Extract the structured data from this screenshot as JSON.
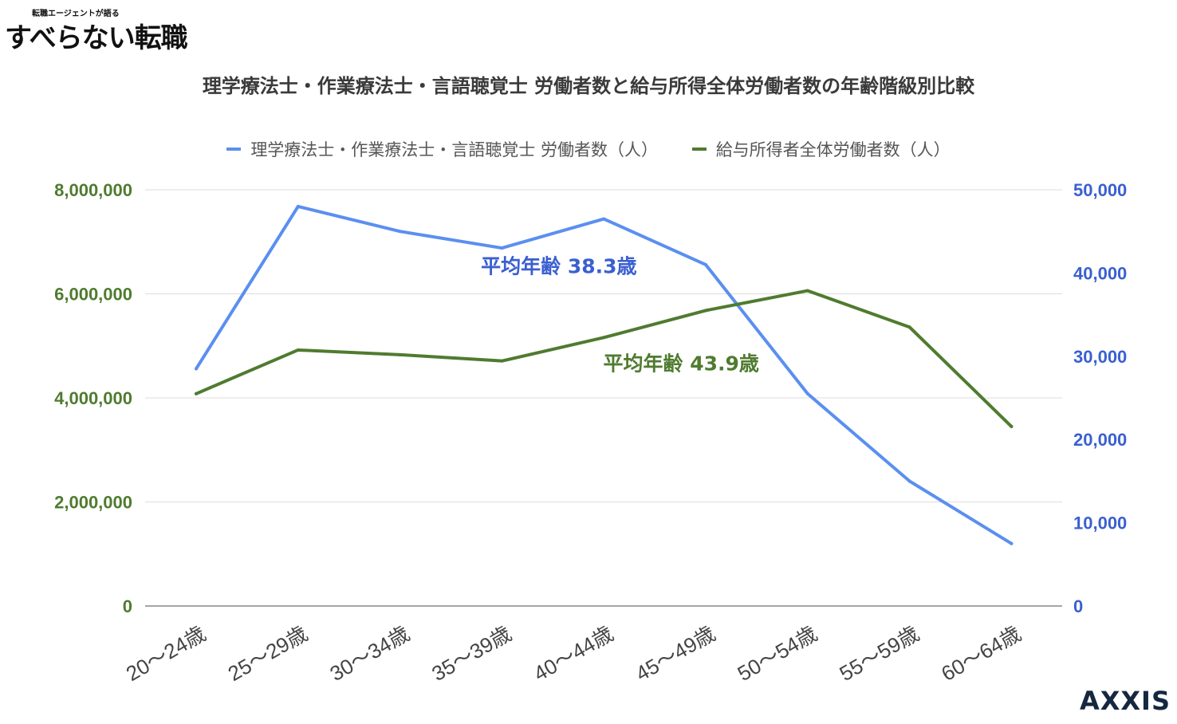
{
  "logo": {
    "tagline": "転職エージェントが語る",
    "name": "すべらない転職"
  },
  "brand": "AXXIS",
  "colors": {
    "pt_series": "#5b8ff0",
    "all_series": "#4f7b2f",
    "grid": "#dddddd",
    "title": "#3a3a3a"
  },
  "chart_data": {
    "type": "line",
    "title": "理学療法士・作業療法士・言語聴覚士 労働者数と給与所得全体労働者数の年齢階級別比較",
    "categories": [
      "20〜24歳",
      "25〜29歳",
      "30〜34歳",
      "35〜39歳",
      "40〜44歳",
      "45〜49歳",
      "50〜54歳",
      "55〜59歳",
      "60〜64歳"
    ],
    "series": [
      {
        "name": "理学療法士・作業療法士・言語聴覚士 労働者数（人）",
        "axis": "right",
        "color": "#5b8ff0",
        "values": [
          28500,
          48000,
          45000,
          43000,
          46500,
          41000,
          25500,
          15000,
          7500
        ]
      },
      {
        "name": "給与所得者全体労働者数（人）",
        "axis": "left",
        "color": "#4f7b2f",
        "values": [
          4080000,
          4920000,
          4830000,
          4710000,
          5160000,
          5680000,
          6060000,
          5360000,
          3450000
        ]
      }
    ],
    "y_left": {
      "min": 0,
      "max": 8000000,
      "ticks": [
        0,
        2000000,
        4000000,
        6000000,
        8000000
      ],
      "tick_labels": [
        "0",
        "2,000,000",
        "4,000,000",
        "6,000,000",
        "8,000,000"
      ],
      "color": "#4f7b2f"
    },
    "y_right": {
      "min": 0,
      "max": 50000,
      "ticks": [
        0,
        10000,
        20000,
        30000,
        40000,
        50000
      ],
      "tick_labels": [
        "0",
        "10,000",
        "20,000",
        "30,000",
        "40,000",
        "50,000"
      ],
      "color": "#3a5fd0"
    },
    "annotations": [
      {
        "text": "平均年齢 38.3歳",
        "color": "#3a5fd0",
        "x_index": 3.7,
        "y_right": 40000
      },
      {
        "text": "平均年齢 43.9歳",
        "color": "#4f7b2f",
        "x_index": 4.9,
        "y_right": 28300
      }
    ],
    "grid": true,
    "legend_position": "top-center"
  }
}
